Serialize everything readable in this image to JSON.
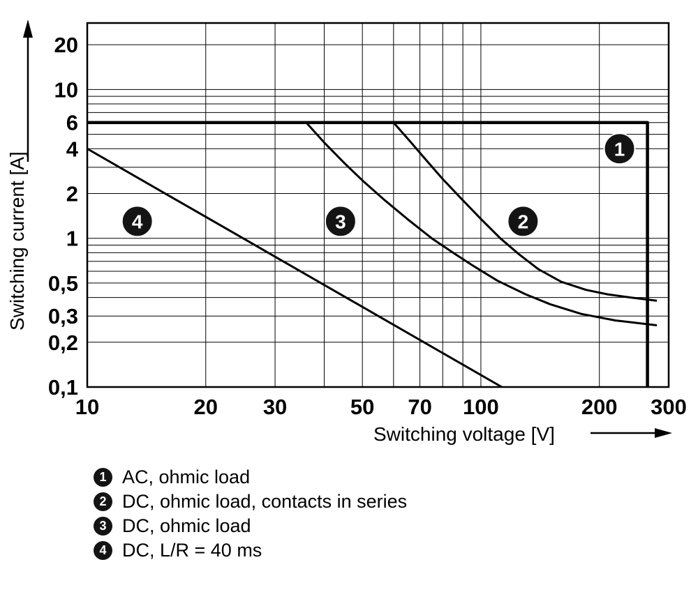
{
  "chart_data": {
    "type": "line",
    "title": "",
    "xlabel": "Switching voltage [V]",
    "ylabel": "Switching current [A]",
    "x_scale": "log",
    "y_scale": "log",
    "xlim": [
      10,
      300
    ],
    "ylim": [
      0.1,
      28
    ],
    "grid": true,
    "legend_position": "below",
    "x_gridlines": [
      20,
      30,
      40,
      50,
      60,
      70,
      80,
      90,
      100,
      200
    ],
    "y_gridlines": [
      0.2,
      0.3,
      0.4,
      0.5,
      0.6,
      0.7,
      0.8,
      0.9,
      1,
      2,
      3,
      4,
      5,
      6,
      7,
      8,
      9,
      10,
      20
    ],
    "x_ticks": [
      {
        "v": 10,
        "label": "10"
      },
      {
        "v": 20,
        "label": "20"
      },
      {
        "v": 30,
        "label": "30"
      },
      {
        "v": 50,
        "label": "50"
      },
      {
        "v": 70,
        "label": "70"
      },
      {
        "v": 100,
        "label": "100"
      },
      {
        "v": 200,
        "label": "200"
      },
      {
        "v": 300,
        "label": "300"
      }
    ],
    "y_ticks": [
      {
        "v": 20,
        "label": "20"
      },
      {
        "v": 10,
        "label": "10"
      },
      {
        "v": 6,
        "label": "6"
      },
      {
        "v": 4,
        "label": "4"
      },
      {
        "v": 2,
        "label": "2"
      },
      {
        "v": 1,
        "label": "1"
      },
      {
        "v": 0.5,
        "label": "0,5"
      },
      {
        "v": 0.3,
        "label": "0,3"
      },
      {
        "v": 0.2,
        "label": "0,2"
      },
      {
        "v": 0.1,
        "label": "0,1"
      }
    ],
    "series": [
      {
        "id": "1",
        "name": "AC, ohmic load",
        "width": 4.5,
        "points": [
          [
            10,
            6
          ],
          [
            265,
            6
          ],
          [
            265,
            0.1
          ]
        ]
      },
      {
        "id": "2",
        "name": "DC, ohmic load, contacts in series",
        "width": 3,
        "points": [
          [
            60,
            6
          ],
          [
            66,
            4.5
          ],
          [
            73,
            3.3
          ],
          [
            80,
            2.5
          ],
          [
            90,
            1.8
          ],
          [
            100,
            1.35
          ],
          [
            112,
            1.0
          ],
          [
            125,
            0.78
          ],
          [
            140,
            0.62
          ],
          [
            160,
            0.51
          ],
          [
            185,
            0.45
          ],
          [
            210,
            0.42
          ],
          [
            240,
            0.4
          ],
          [
            280,
            0.38
          ]
        ]
      },
      {
        "id": "3",
        "name": "DC, ohmic load",
        "width": 3,
        "points": [
          [
            36,
            6
          ],
          [
            40,
            4.4
          ],
          [
            45,
            3.2
          ],
          [
            50,
            2.45
          ],
          [
            57,
            1.8
          ],
          [
            65,
            1.35
          ],
          [
            75,
            1.0
          ],
          [
            85,
            0.8
          ],
          [
            95,
            0.66
          ],
          [
            110,
            0.52
          ],
          [
            130,
            0.42
          ],
          [
            150,
            0.36
          ],
          [
            180,
            0.31
          ],
          [
            220,
            0.28
          ],
          [
            280,
            0.26
          ]
        ]
      },
      {
        "id": "4",
        "name": "DC, L/R = 40 ms",
        "width": 3,
        "points": [
          [
            10,
            4
          ],
          [
            113,
            0.1
          ]
        ]
      }
    ],
    "markers": [
      {
        "label": "1",
        "x": 225,
        "y": 4.0
      },
      {
        "label": "2",
        "x": 128,
        "y": 1.3
      },
      {
        "label": "3",
        "x": 44,
        "y": 1.3
      },
      {
        "label": "4",
        "x": 13.4,
        "y": 1.3
      }
    ],
    "legend": [
      {
        "num": "1",
        "label": "AC, ohmic load"
      },
      {
        "num": "2",
        "label": "DC, ohmic load, contacts in series"
      },
      {
        "num": "3",
        "label": "DC, ohmic load"
      },
      {
        "num": "4",
        "label": "DC, L/R = 40 ms"
      }
    ],
    "colors": {
      "line": "#000000",
      "background": "#ffffff",
      "marker_fill": "#141414",
      "marker_text": "#ffffff"
    }
  }
}
